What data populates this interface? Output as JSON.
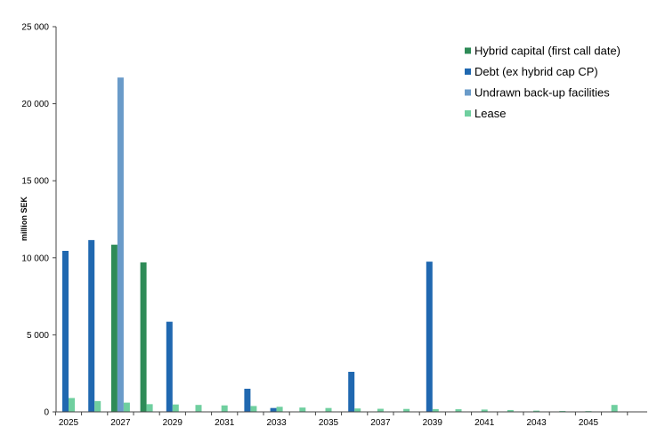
{
  "chart_data": {
    "type": "bar",
    "ylabel": "million SEK",
    "ylim": [
      0,
      25000
    ],
    "yticks": [
      0,
      5000,
      10000,
      15000,
      20000,
      25000
    ],
    "ytick_labels": [
      "0",
      "5 000",
      "10 000",
      "15 000",
      "20 000",
      "25 000"
    ],
    "categories": [
      2025,
      2026,
      2027,
      2028,
      2029,
      2030,
      2031,
      2032,
      2033,
      2034,
      2035,
      2036,
      2037,
      2038,
      2039,
      2040,
      2041,
      2042,
      2043,
      2044,
      2045,
      2046
    ],
    "xtick_labels": [
      "2025",
      "2027",
      "2029",
      "2031",
      "2033",
      "2035",
      "2037",
      "2039",
      "2041",
      "2043",
      "2045"
    ],
    "legend_position": "top-right",
    "grid": false,
    "series": [
      {
        "name": "Hybrid capital (first call date)",
        "color": "#2e8b57",
        "values": [
          0,
          0,
          10850,
          9700,
          0,
          0,
          0,
          0,
          0,
          0,
          0,
          0,
          0,
          0,
          0,
          0,
          0,
          0,
          0,
          0,
          0,
          0
        ]
      },
      {
        "name": "Debt (ex hybrid cap CP)",
        "color": "#2068b0",
        "values": [
          10450,
          11150,
          0,
          0,
          5850,
          0,
          0,
          1500,
          250,
          0,
          0,
          2600,
          0,
          0,
          9750,
          0,
          0,
          0,
          0,
          0,
          0,
          0
        ]
      },
      {
        "name": "Undrawn back-up facilities",
        "color": "#6a9bc9",
        "values": [
          0,
          0,
          21700,
          0,
          0,
          0,
          0,
          0,
          0,
          0,
          0,
          0,
          0,
          0,
          0,
          0,
          0,
          0,
          0,
          0,
          0,
          0
        ]
      },
      {
        "name": "Lease",
        "color": "#6fcf9f",
        "values": [
          900,
          700,
          600,
          500,
          480,
          450,
          420,
          380,
          330,
          280,
          250,
          220,
          200,
          190,
          180,
          170,
          150,
          120,
          80,
          60,
          50,
          450
        ]
      }
    ]
  }
}
